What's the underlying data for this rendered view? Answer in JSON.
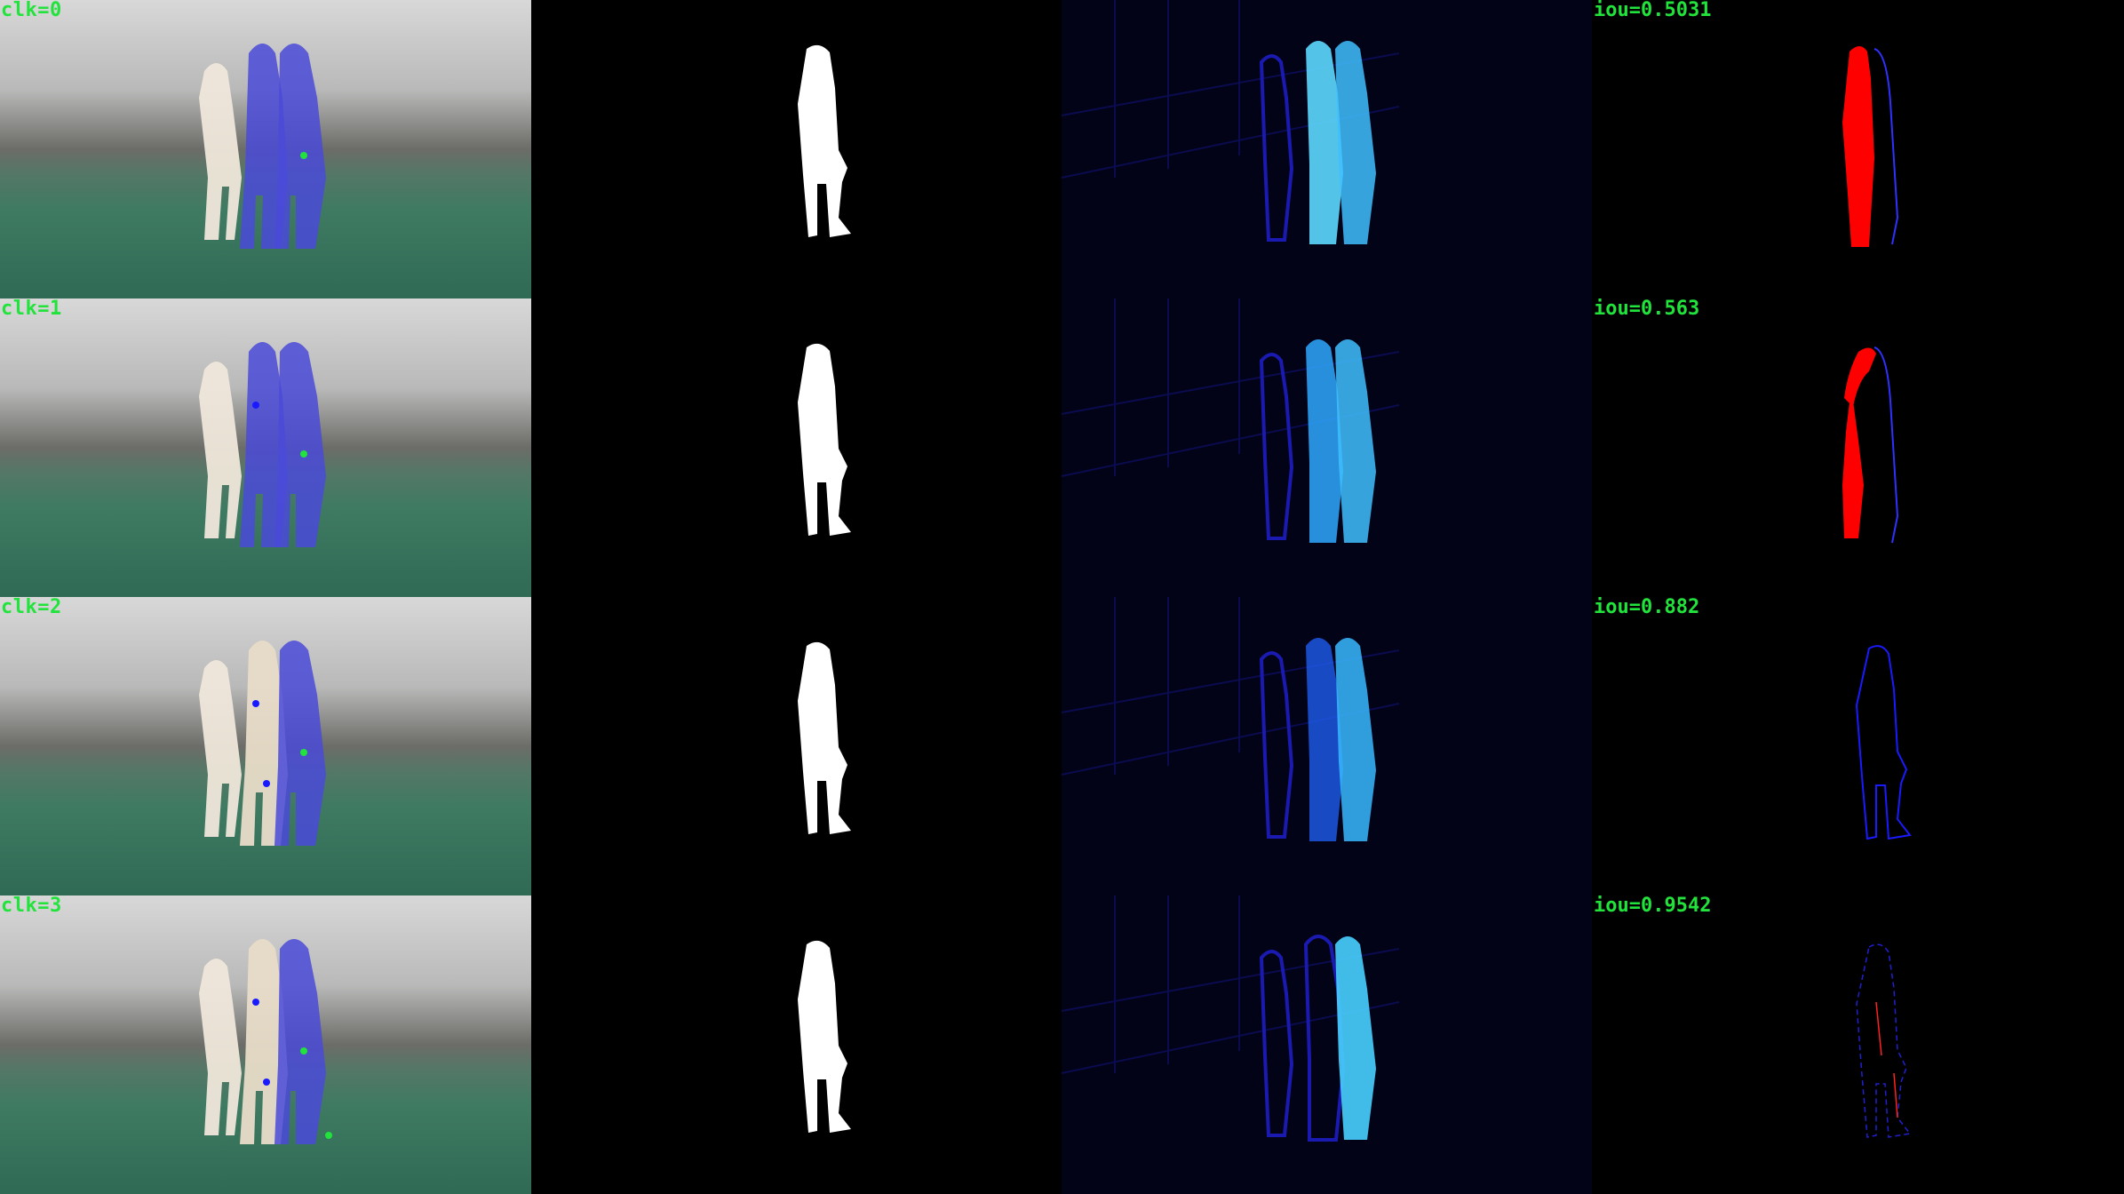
{
  "rows": [
    {
      "click_label": "clk=0",
      "iou_label": "iou=0.5031"
    },
    {
      "click_label": "clk=1",
      "iou_label": "iou=0.563"
    },
    {
      "click_label": "clk=2",
      "iou_label": "iou=0.882"
    },
    {
      "click_label": "clk=3",
      "iou_label": "iou=0.9542"
    }
  ],
  "colors": {
    "label_green": "#21e33b",
    "mask_white": "#ffffff",
    "error_red": "#ff0000",
    "error_blue": "#1a1aff",
    "overlay_blue": "#4a4ad8",
    "heat_cyan": "#38c8ff"
  },
  "icons": {
    "positive_click": "green-dot-icon",
    "negative_click": "blue-dot-icon"
  }
}
